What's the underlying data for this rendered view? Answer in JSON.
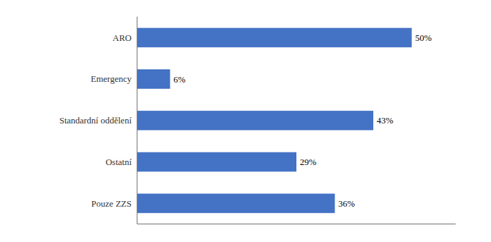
{
  "chart_data": {
    "type": "bar",
    "orientation": "horizontal",
    "categories": [
      "Pouze ZZS",
      "Ostatní",
      "Standardní oddělení",
      "Emergency",
      "ARO"
    ],
    "values": [
      36,
      29,
      43,
      6,
      50
    ],
    "value_labels": [
      "36%",
      "29%",
      "43%",
      "6%",
      "50%"
    ],
    "data_labels": true,
    "color": "#4472c4",
    "xlim": [
      0,
      58
    ],
    "tick_labels": "y",
    "grid": false
  }
}
